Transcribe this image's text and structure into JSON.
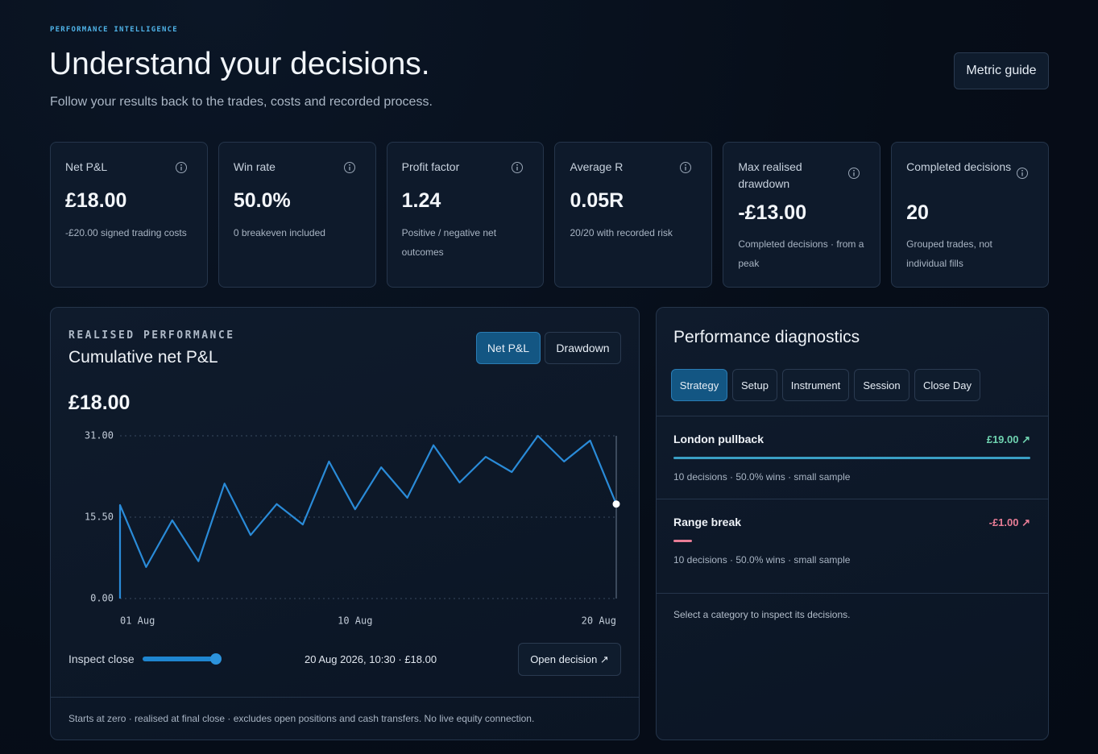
{
  "header": {
    "eyebrow": "PERFORMANCE INTELLIGENCE",
    "title": "Understand your decisions.",
    "subtitle": "Follow your results back to the trades, costs and recorded process.",
    "button": "Metric guide"
  },
  "cards": [
    {
      "label": "Net P&L",
      "value": "£18.00",
      "note": "-£20.00 signed trading costs"
    },
    {
      "label": "Win rate",
      "value": "50.0%",
      "note": "0 breakeven included"
    },
    {
      "label": "Profit factor",
      "value": "1.24",
      "note": "Positive / negative net outcomes"
    },
    {
      "label": "Average R",
      "value": "0.05R",
      "note": "20/20 with recorded risk"
    },
    {
      "label": "Max realised drawdown",
      "value": "-£13.00",
      "note": "Completed decisions · from a peak"
    },
    {
      "label": "Completed decisions",
      "value": "20",
      "note": "Grouped trades, not individual fills"
    }
  ],
  "performance": {
    "eyebrow": "REALISED PERFORMANCE",
    "title": "Cumulative net P&L",
    "toggles": [
      "Net P&L",
      "Drawdown"
    ],
    "headline": "£18.00",
    "inspect_label": "Inspect close",
    "readout": "20 Aug 2026, 10:30 · £18.00",
    "open_button": "Open decision ↗",
    "footnote": "Starts at zero · realised at final close · excludes open positions and cash transfers. No live equity connection."
  },
  "chart_data": {
    "type": "line",
    "x": [
      1,
      1,
      2,
      3,
      4,
      5,
      6,
      7,
      8,
      9,
      10,
      11,
      12,
      13,
      14,
      15,
      16,
      17,
      18,
      19,
      20
    ],
    "values": [
      0,
      17.8,
      6.0,
      14.9,
      7.1,
      21.9,
      12.1,
      18.0,
      14.1,
      26.1,
      17.0,
      25.0,
      19.2,
      29.2,
      22.1,
      27.0,
      24.1,
      31.0,
      26.1,
      30.1,
      18.0
    ],
    "color": "#2a8bd8",
    "xlim": [
      1,
      20
    ],
    "xticks": [
      {
        "value": 1,
        "label": "01 Aug"
      },
      {
        "value": 10,
        "label": "10 Aug"
      },
      {
        "value": 20,
        "label": "20 Aug"
      }
    ],
    "ylim": [
      0,
      31
    ],
    "yticks": [
      {
        "value": 0,
        "label": "0.00"
      },
      {
        "value": 15.5,
        "label": "15.50"
      },
      {
        "value": 31,
        "label": "31.00"
      }
    ],
    "grid": true
  },
  "diagnostics": {
    "title": "Performance diagnostics",
    "tabs": [
      "Strategy",
      "Setup",
      "Instrument",
      "Session",
      "Close Day"
    ],
    "rows": [
      {
        "name": "London pullback",
        "value": 19,
        "value_label": "£19.00 ↗",
        "meta": "10 decisions · 50.0% wins · small sample"
      },
      {
        "name": "Range break",
        "value": -1,
        "value_label": "-£1.00 ↗",
        "meta": "10 decisions · 50.0% wins · small sample"
      }
    ],
    "hint": "Select a category to inspect its decisions."
  }
}
